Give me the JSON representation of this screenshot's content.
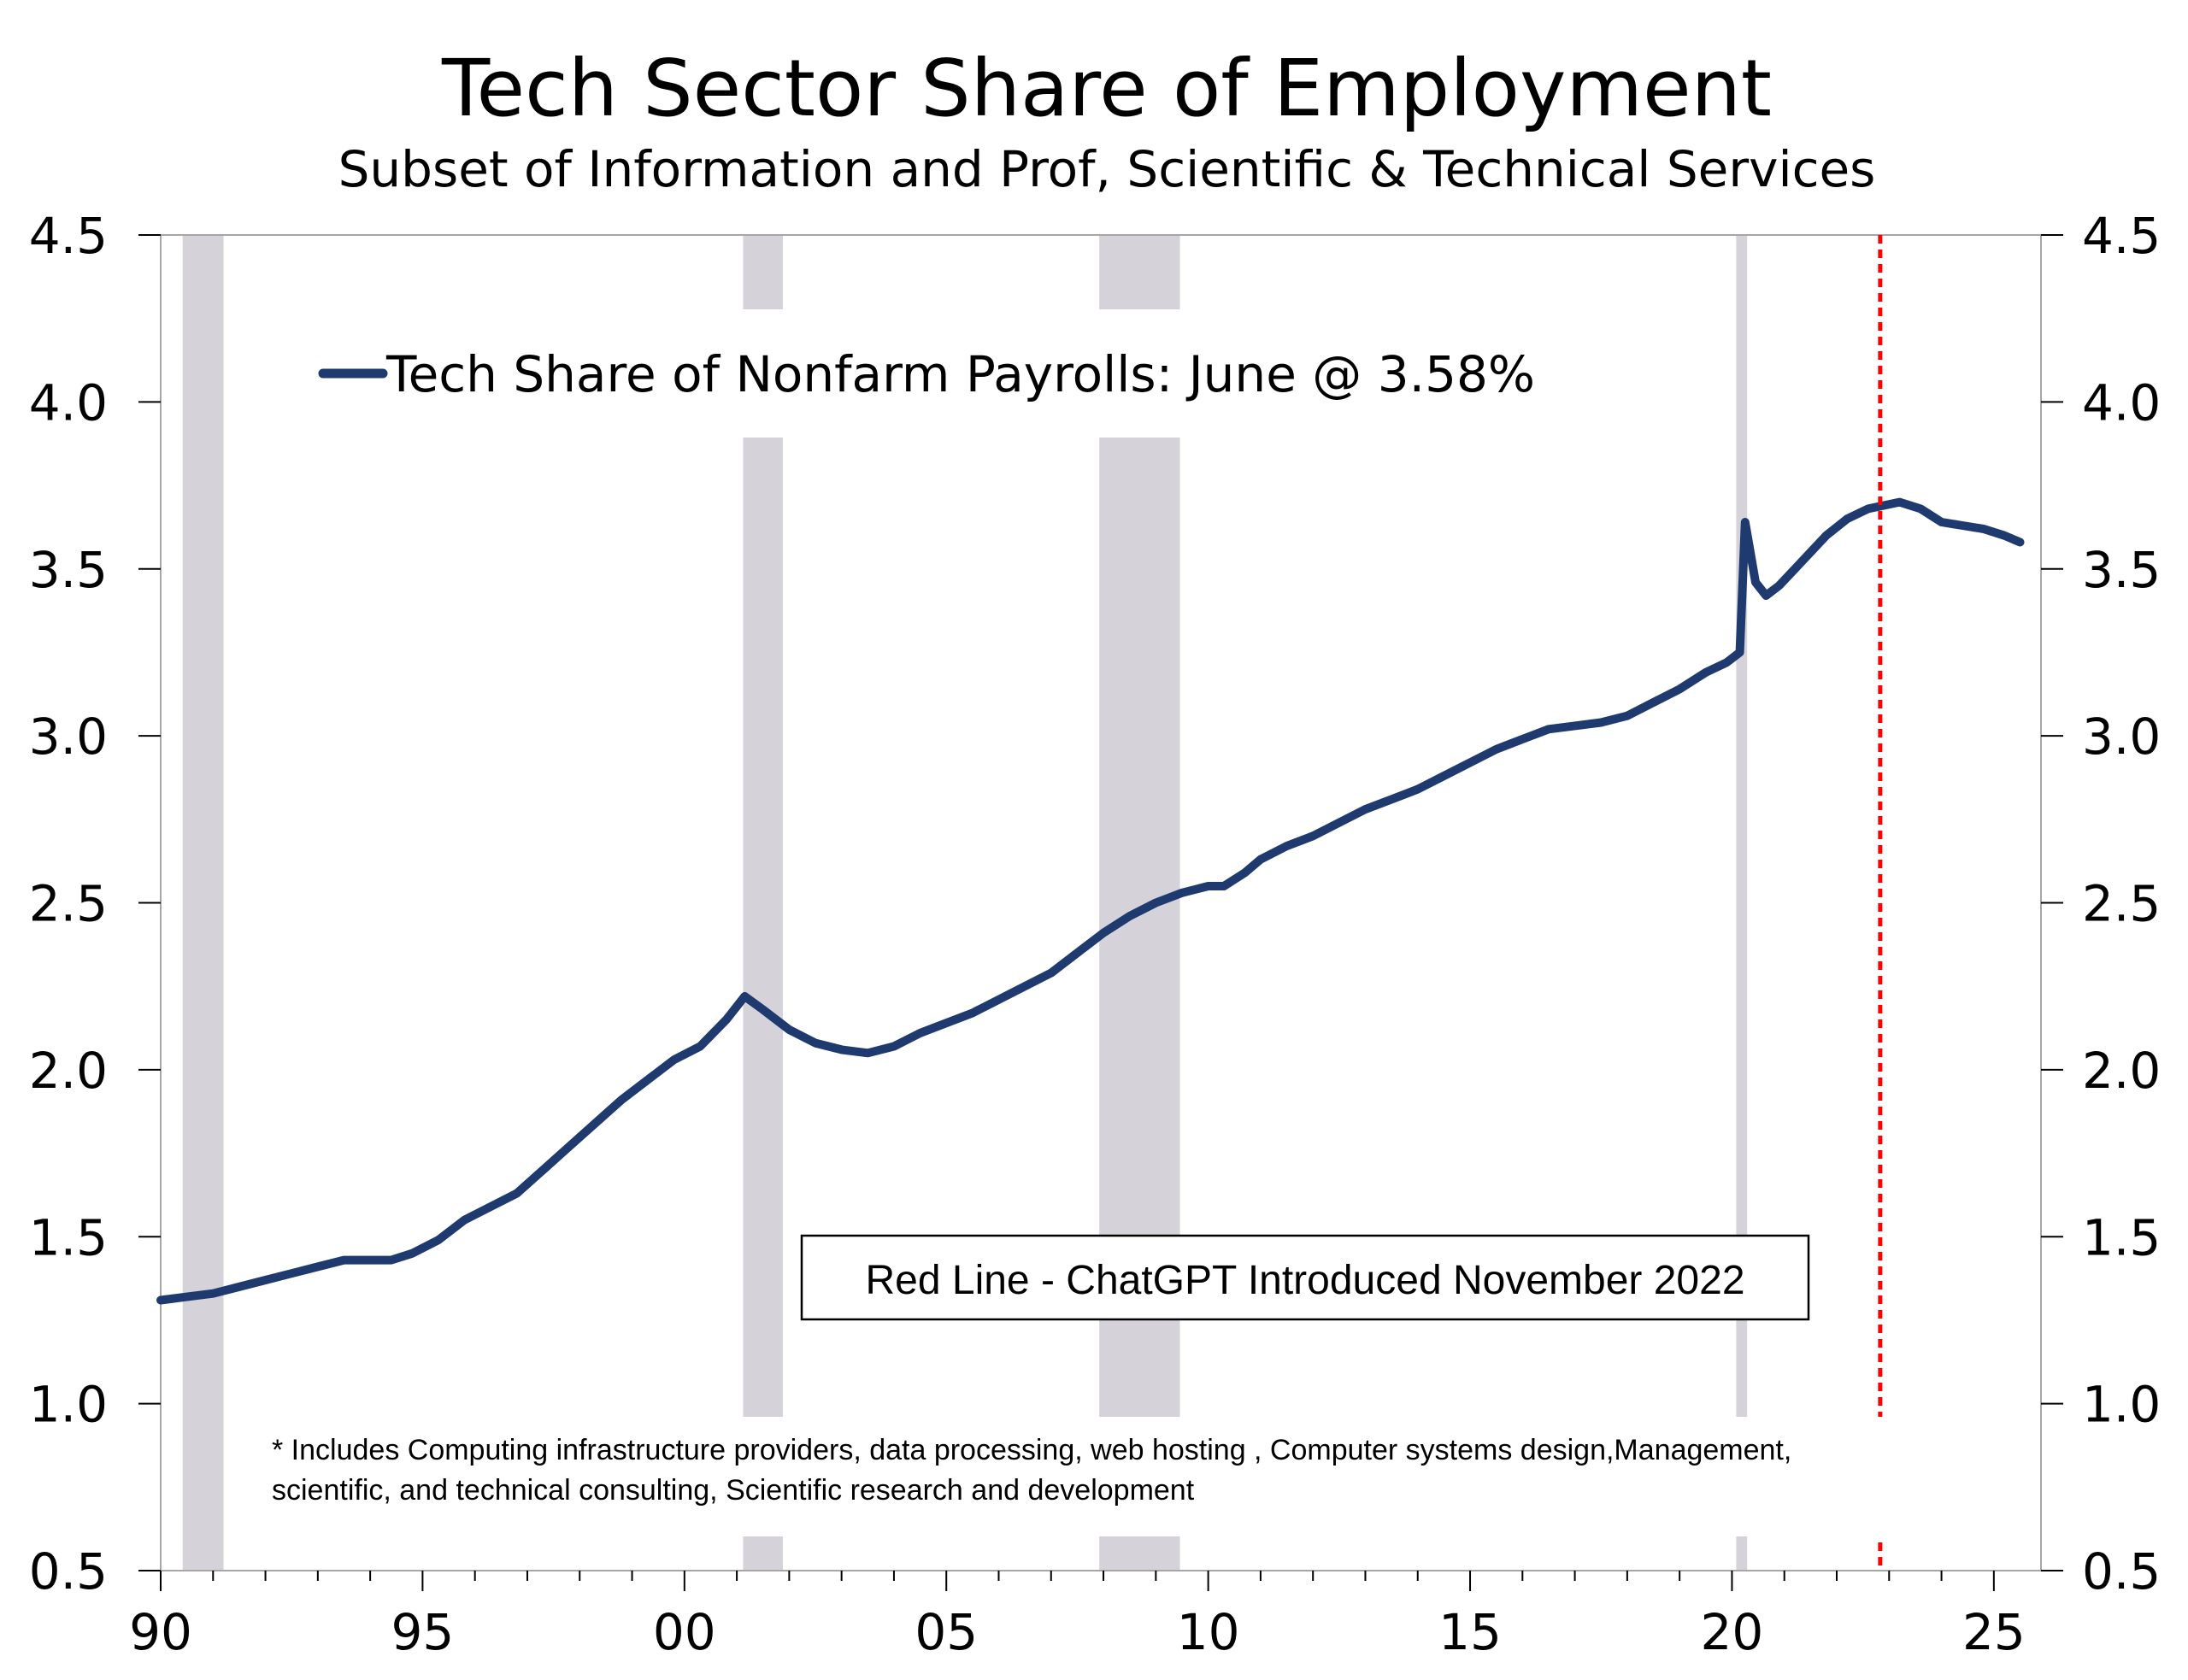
{
  "chart_data": {
    "type": "line",
    "title": "Tech Sector Share of Employment",
    "subtitle": "Subset of Information and Prof, Scientific & Technical Services",
    "x_tick_labels": [
      {
        "year": 1990,
        "label": "90"
      },
      {
        "year": 1995,
        "label": "95"
      },
      {
        "year": 2000,
        "label": "00"
      },
      {
        "year": 2005,
        "label": "05"
      },
      {
        "year": 2010,
        "label": "10"
      },
      {
        "year": 2015,
        "label": "15"
      },
      {
        "year": 2020,
        "label": "20"
      },
      {
        "year": 2025,
        "label": "25"
      }
    ],
    "y_tick_labels": [
      "0.5",
      "1.0",
      "1.5",
      "2.0",
      "2.5",
      "3.0",
      "3.5",
      "4.0",
      "4.5"
    ],
    "y_ticks": [
      0.5,
      1.0,
      1.5,
      2.0,
      2.5,
      3.0,
      3.5,
      4.0,
      4.5
    ],
    "xlim": [
      1990,
      2025.9
    ],
    "ylim": [
      0.5,
      4.5
    ],
    "legend_position": "top-left",
    "grid": false,
    "series": [
      {
        "name": "Tech Share of Nonfarm Payrolls: June @ 3.58%",
        "color": "#1f3a6e",
        "points": [
          [
            1990.0,
            1.31
          ],
          [
            1990.5,
            1.32
          ],
          [
            1991.0,
            1.33
          ],
          [
            1991.5,
            1.35
          ],
          [
            1992.0,
            1.37
          ],
          [
            1992.5,
            1.39
          ],
          [
            1993.0,
            1.41
          ],
          [
            1993.5,
            1.43
          ],
          [
            1994.0,
            1.43
          ],
          [
            1994.4,
            1.43
          ],
          [
            1994.8,
            1.45
          ],
          [
            1995.3,
            1.49
          ],
          [
            1995.8,
            1.55
          ],
          [
            1996.3,
            1.59
          ],
          [
            1996.8,
            1.63
          ],
          [
            1997.3,
            1.7
          ],
          [
            1997.8,
            1.77
          ],
          [
            1998.3,
            1.84
          ],
          [
            1998.8,
            1.91
          ],
          [
            1999.3,
            1.97
          ],
          [
            1999.8,
            2.03
          ],
          [
            2000.3,
            2.07
          ],
          [
            2000.8,
            2.15
          ],
          [
            2001.15,
            2.22
          ],
          [
            2001.5,
            2.18
          ],
          [
            2002.0,
            2.12
          ],
          [
            2002.5,
            2.08
          ],
          [
            2003.0,
            2.06
          ],
          [
            2003.5,
            2.05
          ],
          [
            2004.0,
            2.07
          ],
          [
            2004.5,
            2.11
          ],
          [
            2005.0,
            2.14
          ],
          [
            2005.5,
            2.17
          ],
          [
            2006.0,
            2.21
          ],
          [
            2006.5,
            2.25
          ],
          [
            2007.0,
            2.29
          ],
          [
            2007.5,
            2.35
          ],
          [
            2008.0,
            2.41
          ],
          [
            2008.5,
            2.46
          ],
          [
            2009.0,
            2.5
          ],
          [
            2009.5,
            2.53
          ],
          [
            2010.0,
            2.55
          ],
          [
            2010.3,
            2.55
          ],
          [
            2010.7,
            2.59
          ],
          [
            2011.0,
            2.63
          ],
          [
            2011.5,
            2.67
          ],
          [
            2012.0,
            2.7
          ],
          [
            2012.5,
            2.74
          ],
          [
            2013.0,
            2.78
          ],
          [
            2013.5,
            2.81
          ],
          [
            2014.0,
            2.84
          ],
          [
            2014.5,
            2.88
          ],
          [
            2015.0,
            2.92
          ],
          [
            2015.5,
            2.96
          ],
          [
            2016.0,
            2.99
          ],
          [
            2016.5,
            3.02
          ],
          [
            2017.0,
            3.03
          ],
          [
            2017.5,
            3.04
          ],
          [
            2018.0,
            3.06
          ],
          [
            2018.5,
            3.1
          ],
          [
            2019.0,
            3.14
          ],
          [
            2019.5,
            3.19
          ],
          [
            2019.9,
            3.22
          ],
          [
            2020.15,
            3.25
          ],
          [
            2020.25,
            3.64
          ],
          [
            2020.45,
            3.46
          ],
          [
            2020.65,
            3.42
          ],
          [
            2020.9,
            3.45
          ],
          [
            2021.2,
            3.5
          ],
          [
            2021.5,
            3.55
          ],
          [
            2021.8,
            3.6
          ],
          [
            2022.2,
            3.65
          ],
          [
            2022.6,
            3.68
          ],
          [
            2022.9,
            3.69
          ],
          [
            2023.2,
            3.7
          ],
          [
            2023.6,
            3.68
          ],
          [
            2024.0,
            3.64
          ],
          [
            2024.4,
            3.63
          ],
          [
            2024.8,
            3.62
          ],
          [
            2025.2,
            3.6
          ],
          [
            2025.5,
            3.58
          ]
        ]
      }
    ],
    "recessions": [
      [
        1990.42,
        1991.2
      ],
      [
        2001.12,
        2001.88
      ],
      [
        2007.92,
        2009.46
      ],
      [
        2020.08,
        2020.29
      ]
    ],
    "recession_color": "#d5d2da",
    "reference_line": {
      "x": 2022.83,
      "color": "#ff0000",
      "label": "Red Line - ChatGPT Introduced November 2022"
    },
    "footnote": {
      "lines": [
        "*   Includes Computing infrastructure providers, data processing, web hosting , Computer systems design,Management,",
        "scientific, and technical consulting, Scientific research and development"
      ]
    }
  }
}
